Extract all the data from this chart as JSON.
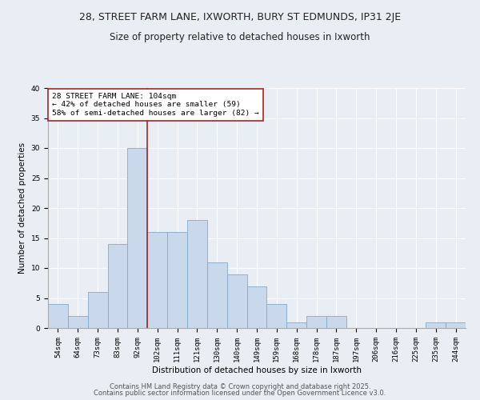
{
  "title1": "28, STREET FARM LANE, IXWORTH, BURY ST EDMUNDS, IP31 2JE",
  "title2": "Size of property relative to detached houses in Ixworth",
  "xlabel": "Distribution of detached houses by size in Ixworth",
  "ylabel": "Number of detached properties",
  "categories": [
    "54sqm",
    "64sqm",
    "73sqm",
    "83sqm",
    "92sqm",
    "102sqm",
    "111sqm",
    "121sqm",
    "130sqm",
    "140sqm",
    "149sqm",
    "159sqm",
    "168sqm",
    "178sqm",
    "187sqm",
    "197sqm",
    "206sqm",
    "216sqm",
    "225sqm",
    "235sqm",
    "244sqm"
  ],
  "values": [
    4,
    2,
    6,
    14,
    30,
    16,
    16,
    18,
    11,
    9,
    7,
    4,
    1,
    2,
    2,
    0,
    0,
    0,
    0,
    1,
    1
  ],
  "bar_color": "#c9d9eb",
  "bar_edge_color": "#7faacb",
  "vline_color": "#aa2222",
  "annotation_text": "28 STREET FARM LANE: 104sqm\n← 42% of detached houses are smaller (59)\n58% of semi-detached houses are larger (82) →",
  "annotation_box_color": "white",
  "annotation_box_edge": "#aa2222",
  "ylim": [
    0,
    40
  ],
  "yticks": [
    0,
    5,
    10,
    15,
    20,
    25,
    30,
    35,
    40
  ],
  "footer1": "Contains HM Land Registry data © Crown copyright and database right 2025.",
  "footer2": "Contains public sector information licensed under the Open Government Licence v3.0.",
  "bg_color": "#e8eef4",
  "plot_bg_color": "#e8eef4",
  "title1_fontsize": 9,
  "title2_fontsize": 8.5,
  "axis_label_fontsize": 7.5,
  "tick_fontsize": 6.5,
  "annotation_fontsize": 6.8,
  "footer_fontsize": 6
}
